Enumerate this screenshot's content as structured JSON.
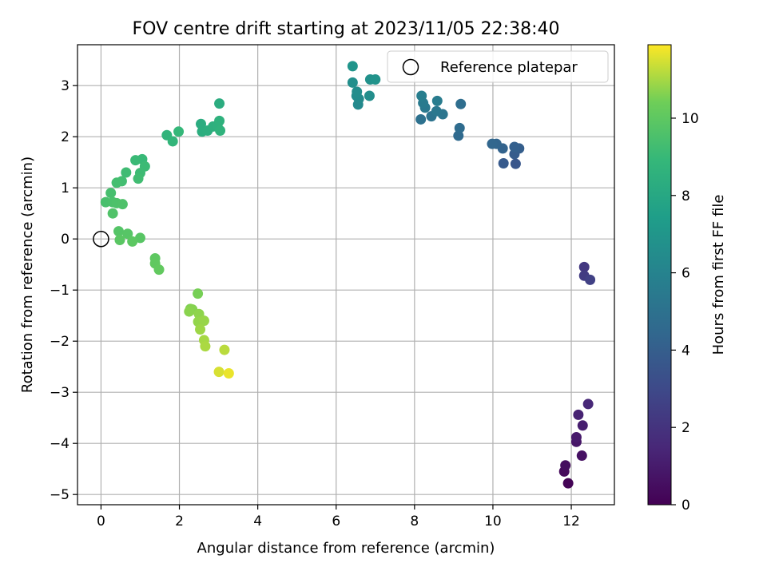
{
  "chart_data": {
    "type": "scatter",
    "title": "FOV centre drift starting at 2023/11/05 22:38:40",
    "xlabel": "Angular distance from reference (arcmin)",
    "ylabel": "Rotation from reference (arcmin)",
    "xlim": [
      -0.6,
      13.1
    ],
    "ylim": [
      -5.2,
      3.8
    ],
    "xticks": [
      0,
      2,
      4,
      6,
      8,
      10,
      12
    ],
    "yticks": [
      -5,
      -4,
      -3,
      -2,
      -1,
      0,
      1,
      2,
      3
    ],
    "grid": true,
    "legend": {
      "placement": "top-right",
      "entries": [
        "Reference platepar"
      ]
    },
    "reference_point": {
      "x": 0,
      "y": 0,
      "label": "Reference platepar"
    },
    "colorbar": {
      "label": "Hours from first FF file",
      "range": [
        0,
        11.9
      ],
      "ticks": [
        0,
        2,
        4,
        6,
        8,
        10
      ],
      "colormap": "viridis"
    },
    "points": [
      {
        "x": 11.92,
        "y": -4.78,
        "h": 0.1
      },
      {
        "x": 11.82,
        "y": -4.55,
        "h": 0.3
      },
      {
        "x": 11.85,
        "y": -4.43,
        "h": 0.45
      },
      {
        "x": 12.27,
        "y": -4.24,
        "h": 0.6
      },
      {
        "x": 12.13,
        "y": -3.97,
        "h": 0.8
      },
      {
        "x": 12.13,
        "y": -3.88,
        "h": 0.95
      },
      {
        "x": 12.29,
        "y": -3.65,
        "h": 1.1
      },
      {
        "x": 12.18,
        "y": -3.44,
        "h": 1.3
      },
      {
        "x": 12.43,
        "y": -3.23,
        "h": 1.5
      },
      {
        "x": 12.33,
        "y": -0.55,
        "h": 2.2
      },
      {
        "x": 12.33,
        "y": -0.72,
        "h": 2.4
      },
      {
        "x": 12.48,
        "y": -0.8,
        "h": 2.6
      },
      {
        "x": 10.58,
        "y": 1.47,
        "h": 3.6
      },
      {
        "x": 10.27,
        "y": 1.48,
        "h": 3.8
      },
      {
        "x": 10.55,
        "y": 1.66,
        "h": 3.9
      },
      {
        "x": 10.67,
        "y": 1.77,
        "h": 4.0
      },
      {
        "x": 10.55,
        "y": 1.8,
        "h": 4.1
      },
      {
        "x": 10.25,
        "y": 1.77,
        "h": 4.2
      },
      {
        "x": 10.09,
        "y": 1.86,
        "h": 4.3
      },
      {
        "x": 9.98,
        "y": 1.86,
        "h": 4.4
      },
      {
        "x": 9.12,
        "y": 2.02,
        "h": 4.6
      },
      {
        "x": 9.15,
        "y": 2.17,
        "h": 4.7
      },
      {
        "x": 9.18,
        "y": 2.64,
        "h": 4.8
      },
      {
        "x": 8.16,
        "y": 2.34,
        "h": 5.0
      },
      {
        "x": 8.43,
        "y": 2.4,
        "h": 5.1
      },
      {
        "x": 8.72,
        "y": 2.44,
        "h": 5.2
      },
      {
        "x": 8.56,
        "y": 2.5,
        "h": 5.3
      },
      {
        "x": 8.27,
        "y": 2.57,
        "h": 5.4
      },
      {
        "x": 8.22,
        "y": 2.66,
        "h": 5.5
      },
      {
        "x": 8.58,
        "y": 2.7,
        "h": 5.6
      },
      {
        "x": 8.18,
        "y": 2.8,
        "h": 5.7
      },
      {
        "x": 6.56,
        "y": 2.63,
        "h": 6.3
      },
      {
        "x": 6.58,
        "y": 2.74,
        "h": 6.4
      },
      {
        "x": 6.52,
        "y": 2.8,
        "h": 6.5
      },
      {
        "x": 6.53,
        "y": 2.88,
        "h": 6.55
      },
      {
        "x": 6.85,
        "y": 2.8,
        "h": 6.6
      },
      {
        "x": 6.42,
        "y": 3.06,
        "h": 6.65
      },
      {
        "x": 6.87,
        "y": 3.12,
        "h": 6.75
      },
      {
        "x": 7.0,
        "y": 3.12,
        "h": 6.85
      },
      {
        "x": 6.42,
        "y": 3.38,
        "h": 6.95
      },
      {
        "x": 2.55,
        "y": 2.25,
        "h": 8.3
      },
      {
        "x": 2.58,
        "y": 2.1,
        "h": 8.35
      },
      {
        "x": 2.72,
        "y": 2.12,
        "h": 8.4
      },
      {
        "x": 2.86,
        "y": 2.2,
        "h": 8.45
      },
      {
        "x": 2.97,
        "y": 2.22,
        "h": 8.5
      },
      {
        "x": 3.02,
        "y": 2.31,
        "h": 8.55
      },
      {
        "x": 3.04,
        "y": 2.12,
        "h": 8.6
      },
      {
        "x": 3.02,
        "y": 2.65,
        "h": 8.3
      },
      {
        "x": 1.68,
        "y": 2.03,
        "h": 8.7
      },
      {
        "x": 1.83,
        "y": 1.91,
        "h": 8.8
      },
      {
        "x": 1.98,
        "y": 2.1,
        "h": 8.9
      },
      {
        "x": 1.05,
        "y": 1.56,
        "h": 9.0
      },
      {
        "x": 0.88,
        "y": 1.54,
        "h": 9.05
      },
      {
        "x": 1.12,
        "y": 1.42,
        "h": 9.1
      },
      {
        "x": 1.0,
        "y": 1.29,
        "h": 9.15
      },
      {
        "x": 0.64,
        "y": 1.3,
        "h": 9.2
      },
      {
        "x": 0.95,
        "y": 1.18,
        "h": 9.25
      },
      {
        "x": 0.53,
        "y": 1.13,
        "h": 9.3
      },
      {
        "x": 0.4,
        "y": 1.1,
        "h": 9.35
      },
      {
        "x": 0.25,
        "y": 0.9,
        "h": 9.4
      },
      {
        "x": 0.12,
        "y": 0.72,
        "h": 9.45
      },
      {
        "x": 0.3,
        "y": 0.72,
        "h": 9.5
      },
      {
        "x": 0.4,
        "y": 0.7,
        "h": 9.55
      },
      {
        "x": 0.55,
        "y": 0.68,
        "h": 9.6
      },
      {
        "x": 0.3,
        "y": 0.5,
        "h": 9.65
      },
      {
        "x": 0.45,
        "y": 0.15,
        "h": 9.75
      },
      {
        "x": 0.68,
        "y": 0.1,
        "h": 9.8
      },
      {
        "x": 1.0,
        "y": 0.02,
        "h": 9.85
      },
      {
        "x": 0.48,
        "y": -0.02,
        "h": 9.9
      },
      {
        "x": 0.8,
        "y": -0.05,
        "h": 9.95
      },
      {
        "x": 1.38,
        "y": -0.38,
        "h": 10.0
      },
      {
        "x": 1.38,
        "y": -0.48,
        "h": 10.05
      },
      {
        "x": 1.48,
        "y": -0.6,
        "h": 10.1
      },
      {
        "x": 2.47,
        "y": -1.07,
        "h": 10.5
      },
      {
        "x": 2.28,
        "y": -1.37,
        "h": 10.6
      },
      {
        "x": 2.33,
        "y": -1.38,
        "h": 10.65
      },
      {
        "x": 2.25,
        "y": -1.42,
        "h": 10.7
      },
      {
        "x": 2.5,
        "y": -1.47,
        "h": 10.75
      },
      {
        "x": 2.48,
        "y": -1.62,
        "h": 10.8
      },
      {
        "x": 2.63,
        "y": -1.6,
        "h": 10.85
      },
      {
        "x": 2.53,
        "y": -1.77,
        "h": 10.9
      },
      {
        "x": 2.63,
        "y": -1.98,
        "h": 11.0
      },
      {
        "x": 2.66,
        "y": -2.1,
        "h": 11.05
      },
      {
        "x": 3.15,
        "y": -2.17,
        "h": 11.2
      },
      {
        "x": 3.01,
        "y": -2.6,
        "h": 11.5
      },
      {
        "x": 3.26,
        "y": -2.63,
        "h": 11.7
      }
    ]
  }
}
